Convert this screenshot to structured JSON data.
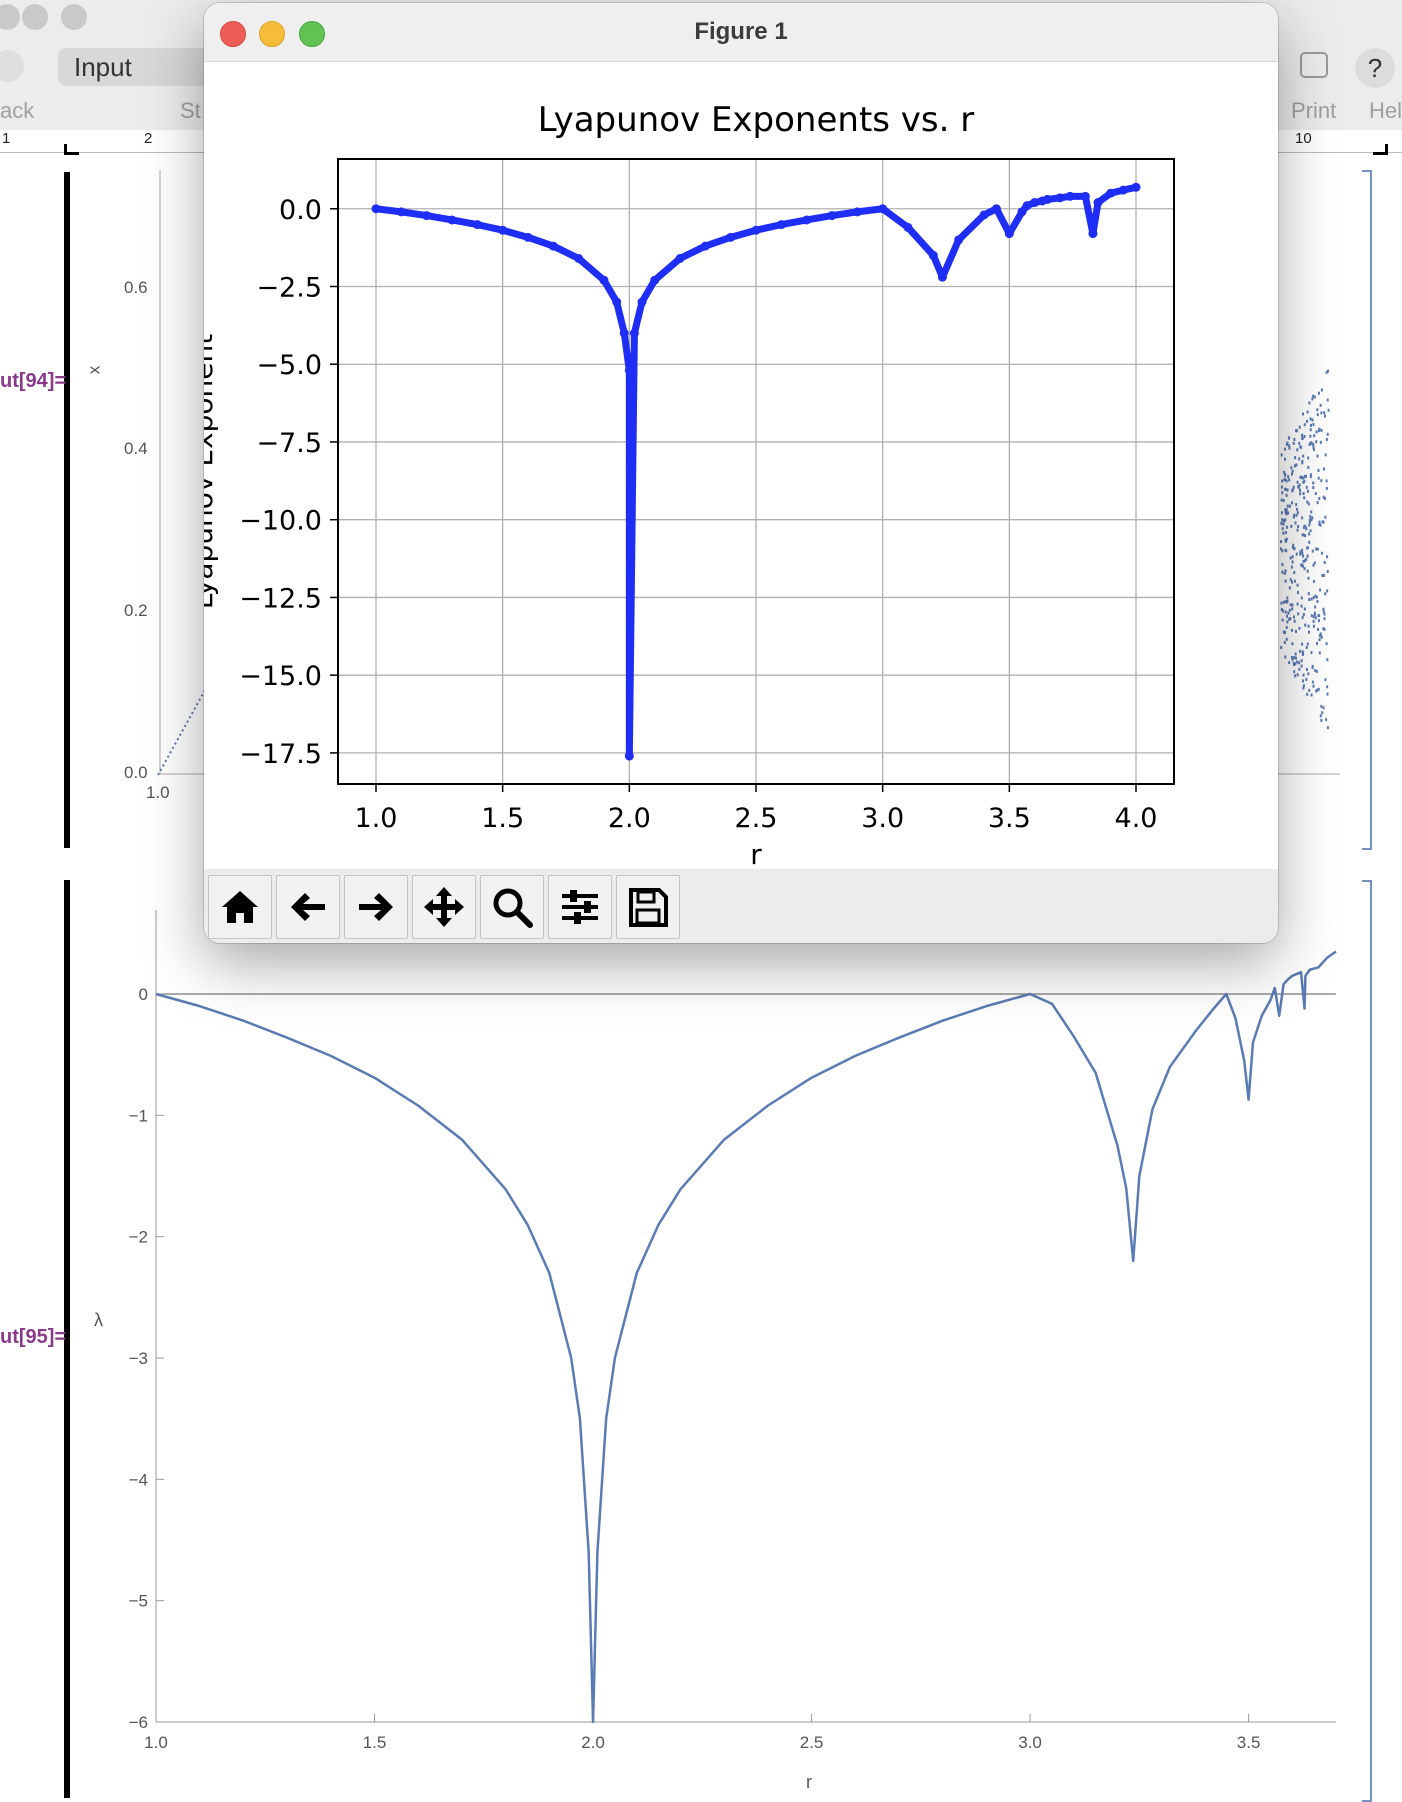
{
  "notebook": {
    "toolbar": {
      "input_style": "Input",
      "back_label": "ack",
      "style_label": "St",
      "print_label": "Print",
      "help_label": "Hel"
    },
    "ruler": {
      "marks": [
        "1",
        "2",
        "10"
      ]
    },
    "out94": {
      "label": "ut[94]=",
      "ylabel": "x",
      "yticks": [
        "0.6",
        "0.4",
        "0.2",
        "0.0"
      ],
      "xtick": "1.0"
    },
    "out95": {
      "label": "ut[95]=",
      "ylabel": "λ",
      "xlabel": "r",
      "yticks": [
        "0",
        "−1",
        "−2",
        "−3",
        "−4",
        "−5",
        "−6"
      ],
      "xticks": [
        "1.0",
        "1.5",
        "2.0",
        "2.5",
        "3.0",
        "3.5"
      ],
      "line_color": "#5b7bb4"
    }
  },
  "figure_window": {
    "title": "Figure 1",
    "toolbar_icons": [
      "home-icon",
      "back-arrow-icon",
      "forward-arrow-icon",
      "pan-icon",
      "zoom-icon",
      "configure-icon",
      "save-icon"
    ]
  },
  "chart_data": [
    {
      "type": "scatter",
      "title": "Lyapunov Exponents vs. r",
      "xlabel": "r",
      "ylabel": "Lyapunov Exponent",
      "xlim": [
        0.85,
        4.15
      ],
      "ylim": [
        -18.5,
        1.6
      ],
      "xticks": [
        "1.0",
        "1.5",
        "2.0",
        "2.5",
        "3.0",
        "3.5",
        "4.0"
      ],
      "yticks": [
        "0.0",
        "−2.5",
        "−5.0",
        "−7.5",
        "−10.0",
        "−12.5",
        "−15.0",
        "−17.5"
      ],
      "grid": true,
      "color": "#1f2ef5",
      "x": [
        1.0,
        1.1,
        1.2,
        1.3,
        1.4,
        1.5,
        1.6,
        1.7,
        1.8,
        1.9,
        1.95,
        1.98,
        2.0,
        2.0,
        2.02,
        2.05,
        2.1,
        2.2,
        2.3,
        2.4,
        2.5,
        2.6,
        2.7,
        2.8,
        2.9,
        3.0,
        3.1,
        3.2,
        3.236,
        3.3,
        3.4,
        3.449,
        3.5,
        3.55,
        3.57,
        3.6,
        3.63,
        3.65,
        3.7,
        3.74,
        3.8,
        3.83,
        3.85,
        3.9,
        3.95,
        4.0
      ],
      "y": [
        0.0,
        -0.1,
        -0.22,
        -0.36,
        -0.51,
        -0.69,
        -0.92,
        -1.2,
        -1.6,
        -2.3,
        -3.0,
        -4.0,
        -5.2,
        -17.6,
        -4.0,
        -3.0,
        -2.3,
        -1.6,
        -1.2,
        -0.92,
        -0.69,
        -0.51,
        -0.36,
        -0.22,
        -0.1,
        0.0,
        -0.6,
        -1.5,
        -2.2,
        -1.0,
        -0.2,
        0.0,
        -0.8,
        -0.1,
        0.1,
        0.2,
        0.25,
        0.3,
        0.35,
        0.4,
        0.4,
        -0.8,
        0.2,
        0.5,
        0.6,
        0.69
      ]
    },
    {
      "type": "line",
      "title": "",
      "xlabel": "r",
      "ylabel": "λ",
      "xlim": [
        1.0,
        3.7
      ],
      "ylim": [
        -6,
        0.7
      ],
      "xticks": [
        "1.0",
        "1.5",
        "2.0",
        "2.5",
        "3.0",
        "3.5"
      ],
      "yticks": [
        "0",
        "−1",
        "−2",
        "−3",
        "−4",
        "−5",
        "−6"
      ],
      "grid": false,
      "color": "#5b7bb4",
      "x": [
        1.0,
        1.1,
        1.2,
        1.3,
        1.4,
        1.5,
        1.6,
        1.7,
        1.8,
        1.85,
        1.9,
        1.95,
        1.97,
        1.99,
        2.0,
        2.01,
        2.03,
        2.05,
        2.1,
        2.15,
        2.2,
        2.3,
        2.4,
        2.5,
        2.6,
        2.7,
        2.8,
        2.9,
        3.0,
        3.05,
        3.1,
        3.15,
        3.2,
        3.22,
        3.236,
        3.25,
        3.28,
        3.32,
        3.38,
        3.42,
        3.449,
        3.47,
        3.49,
        3.5,
        3.51,
        3.53,
        3.55,
        3.56,
        3.57,
        3.58,
        3.59,
        3.6,
        3.62,
        3.628,
        3.63,
        3.64,
        3.66,
        3.68,
        3.7
      ],
      "y": [
        0.0,
        -0.1,
        -0.22,
        -0.36,
        -0.51,
        -0.69,
        -0.92,
        -1.2,
        -1.61,
        -1.9,
        -2.3,
        -3.0,
        -3.5,
        -4.6,
        -6.0,
        -4.6,
        -3.5,
        -3.0,
        -2.3,
        -1.9,
        -1.61,
        -1.2,
        -0.92,
        -0.69,
        -0.51,
        -0.36,
        -0.22,
        -0.1,
        0.0,
        -0.08,
        -0.35,
        -0.65,
        -1.25,
        -1.6,
        -2.2,
        -1.5,
        -0.95,
        -0.6,
        -0.3,
        -0.12,
        0.0,
        -0.2,
        -0.55,
        -0.87,
        -0.4,
        -0.18,
        -0.05,
        0.05,
        -0.18,
        0.08,
        0.12,
        0.15,
        0.18,
        -0.12,
        0.15,
        0.2,
        0.22,
        0.3,
        0.35
      ]
    }
  ]
}
